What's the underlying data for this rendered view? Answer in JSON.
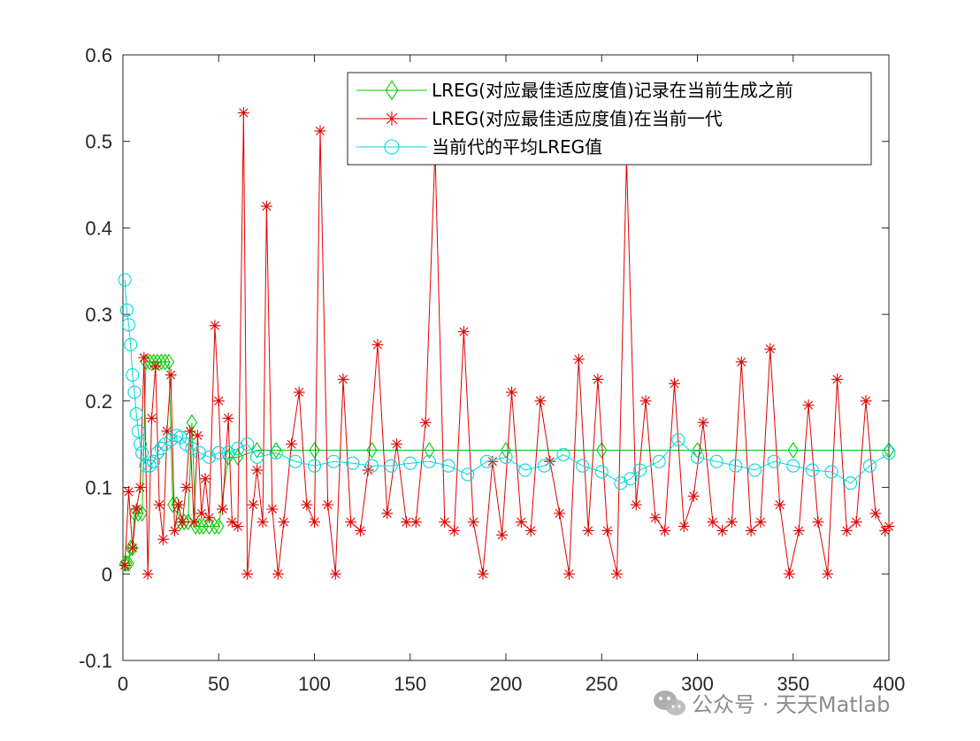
{
  "chart_data": {
    "type": "line",
    "title": "",
    "xlabel": "",
    "ylabel": "",
    "xlim": [
      0,
      400
    ],
    "ylim": [
      -0.1,
      0.6
    ],
    "xticks": [
      0,
      50,
      100,
      150,
      200,
      250,
      300,
      350,
      400
    ],
    "yticks": [
      -0.1,
      0,
      0.1,
      0.2,
      0.3,
      0.4,
      0.5,
      0.6
    ],
    "xtick_labels": [
      "0",
      "50",
      "100",
      "150",
      "200",
      "250",
      "300",
      "350",
      "400"
    ],
    "ytick_labels": [
      "-0.1",
      "0",
      "0.1",
      "0.2",
      "0.3",
      "0.4",
      "0.5",
      "0.6"
    ],
    "grid": false,
    "legend_position": "top-right",
    "series": [
      {
        "name": "LREG(对应最佳适应度值)记录在当前生成之前",
        "color": "#00cc00",
        "marker": "diamond",
        "x": [
          1,
          2,
          3,
          4,
          5,
          6,
          8,
          10,
          12,
          14,
          16,
          18,
          20,
          22,
          24,
          26,
          28,
          30,
          32,
          34,
          36,
          38,
          40,
          42,
          45,
          48,
          50,
          55,
          60,
          70,
          80,
          100,
          130,
          160,
          200,
          250,
          300,
          350,
          400
        ],
        "y": [
          0.012,
          0.012,
          0.012,
          0.03,
          0.03,
          0.07,
          0.07,
          0.07,
          0.245,
          0.245,
          0.245,
          0.245,
          0.245,
          0.245,
          0.245,
          0.08,
          0.08,
          0.06,
          0.06,
          0.06,
          0.175,
          0.055,
          0.055,
          0.055,
          0.055,
          0.055,
          0.055,
          0.135,
          0.135,
          0.143,
          0.143,
          0.143,
          0.143,
          0.143,
          0.143,
          0.143,
          0.143,
          0.143,
          0.143
        ]
      },
      {
        "name": "LREG(对应最佳适应度值)在当前一代",
        "color": "#e00000",
        "marker": "asterisk",
        "x": [
          1,
          3,
          5,
          7,
          9,
          11,
          13,
          15,
          17,
          19,
          21,
          23,
          25,
          27,
          29,
          31,
          33,
          35,
          37,
          39,
          41,
          43,
          45,
          48,
          50,
          52,
          55,
          57,
          60,
          63,
          65,
          68,
          70,
          73,
          75,
          78,
          81,
          84,
          88,
          92,
          96,
          100,
          103,
          107,
          111,
          115,
          119,
          124,
          128,
          133,
          138,
          143,
          148,
          153,
          158,
          163,
          168,
          173,
          178,
          183,
          188,
          193,
          198,
          203,
          208,
          213,
          218,
          223,
          228,
          233,
          238,
          243,
          248,
          253,
          258,
          263,
          268,
          273,
          278,
          283,
          288,
          293,
          298,
          303,
          308,
          313,
          318,
          323,
          328,
          333,
          338,
          343,
          348,
          353,
          358,
          363,
          368,
          373,
          378,
          383,
          388,
          393,
          398,
          400
        ],
        "y": [
          0.01,
          0.095,
          0.03,
          0.075,
          0.1,
          0.25,
          0.0,
          0.18,
          0.24,
          0.08,
          0.04,
          0.165,
          0.23,
          0.05,
          0.08,
          0.06,
          0.1,
          0.165,
          0.06,
          0.16,
          0.07,
          0.11,
          0.065,
          0.287,
          0.2,
          0.075,
          0.18,
          0.06,
          0.055,
          0.533,
          0.0,
          0.08,
          0.12,
          0.06,
          0.425,
          0.075,
          0.0,
          0.06,
          0.15,
          0.21,
          0.08,
          0.06,
          0.512,
          0.08,
          0.0,
          0.225,
          0.06,
          0.05,
          0.12,
          0.265,
          0.07,
          0.15,
          0.06,
          0.06,
          0.175,
          0.49,
          0.06,
          0.05,
          0.28,
          0.06,
          0.0,
          0.13,
          0.045,
          0.21,
          0.06,
          0.05,
          0.2,
          0.13,
          0.07,
          0.0,
          0.248,
          0.05,
          0.225,
          0.05,
          0.0,
          0.48,
          0.08,
          0.2,
          0.065,
          0.05,
          0.22,
          0.055,
          0.09,
          0.175,
          0.06,
          0.05,
          0.06,
          0.245,
          0.05,
          0.06,
          0.26,
          0.08,
          0.0,
          0.05,
          0.195,
          0.06,
          0.0,
          0.225,
          0.05,
          0.06,
          0.2,
          0.07,
          0.05,
          0.055
        ]
      },
      {
        "name": "当前代的平均LREG值",
        "color": "#00d8d8",
        "marker": "circle",
        "x": [
          1,
          2,
          3,
          4,
          5,
          6,
          7,
          8,
          9,
          10,
          12,
          14,
          16,
          18,
          20,
          22,
          25,
          28,
          30,
          33,
          36,
          40,
          45,
          50,
          55,
          60,
          65,
          70,
          80,
          90,
          100,
          110,
          120,
          130,
          140,
          150,
          160,
          170,
          180,
          190,
          200,
          210,
          220,
          230,
          240,
          250,
          260,
          265,
          270,
          280,
          290,
          300,
          310,
          320,
          330,
          340,
          350,
          360,
          370,
          380,
          390,
          400
        ],
        "y": [
          0.34,
          0.305,
          0.288,
          0.265,
          0.23,
          0.21,
          0.185,
          0.165,
          0.15,
          0.14,
          0.125,
          0.125,
          0.13,
          0.14,
          0.145,
          0.15,
          0.155,
          0.16,
          0.158,
          0.15,
          0.145,
          0.14,
          0.135,
          0.14,
          0.14,
          0.145,
          0.15,
          0.135,
          0.14,
          0.13,
          0.125,
          0.13,
          0.128,
          0.125,
          0.125,
          0.128,
          0.13,
          0.125,
          0.115,
          0.13,
          0.135,
          0.12,
          0.125,
          0.138,
          0.125,
          0.118,
          0.105,
          0.11,
          0.12,
          0.13,
          0.155,
          0.135,
          0.13,
          0.125,
          0.12,
          0.13,
          0.125,
          0.12,
          0.118,
          0.105,
          0.125,
          0.14
        ]
      }
    ]
  },
  "watermark": {
    "text": "公众号 · 天天Matlab",
    "icon": "wechat-icon"
  }
}
